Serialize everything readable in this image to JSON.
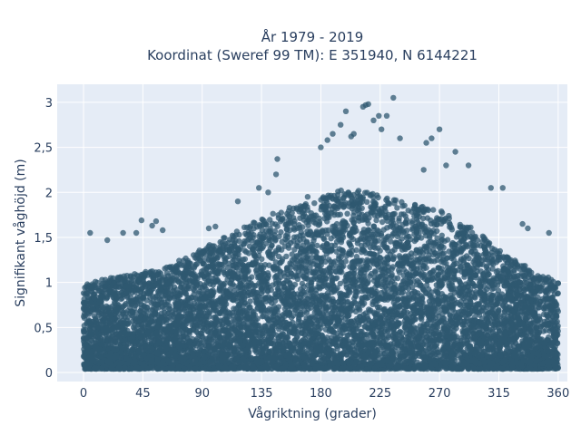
{
  "chart_data": {
    "type": "scatter",
    "title_line1": "År 1979 - 2019",
    "title_line2": "Koordinat (Sweref 99 TM): E 351940, N 6144221",
    "xlabel": "Vågriktning (grader)",
    "ylabel": "Signifikant våghöjd (m)",
    "xlim": [
      -20,
      367
    ],
    "ylim": [
      -0.1,
      3.2
    ],
    "xticks": [
      0,
      45,
      90,
      135,
      180,
      225,
      270,
      315,
      360
    ],
    "xtick_labels": [
      "0",
      "45",
      "90",
      "135",
      "180",
      "225",
      "270",
      "315",
      "360"
    ],
    "yticks": [
      0,
      0.5,
      1,
      1.5,
      2,
      2.5,
      3
    ],
    "ytick_labels": [
      "0",
      "0,5",
      "1",
      "1,5",
      "2",
      "2,5",
      "3"
    ],
    "grid": true,
    "marker_color": "#2f5870",
    "upper_envelope": {
      "x": [
        0,
        20,
        40,
        60,
        80,
        100,
        120,
        140,
        160,
        180,
        200,
        220,
        240,
        260,
        280,
        300,
        320,
        340,
        360
      ],
      "y": [
        1.0,
        1.05,
        1.1,
        1.15,
        1.3,
        1.45,
        1.6,
        1.75,
        1.85,
        1.95,
        2.05,
        2.0,
        1.9,
        1.85,
        1.75,
        1.55,
        1.3,
        1.15,
        1.0
      ]
    },
    "outliers": {
      "x": [
        5,
        18,
        30,
        40,
        44,
        52,
        55,
        60,
        95,
        100,
        117,
        133,
        140,
        146,
        147,
        170,
        180,
        185,
        189,
        195,
        199,
        203,
        205,
        212,
        214,
        216,
        220,
        224,
        226,
        230,
        235,
        240,
        258,
        260,
        264,
        270,
        275,
        282,
        292,
        309,
        318,
        333,
        337,
        353
      ],
      "y": [
        1.55,
        1.47,
        1.55,
        1.55,
        1.69,
        1.63,
        1.68,
        1.58,
        1.6,
        1.62,
        1.9,
        2.05,
        2.0,
        2.2,
        2.37,
        1.95,
        2.5,
        2.58,
        2.65,
        2.75,
        2.9,
        2.62,
        2.65,
        2.95,
        2.97,
        2.98,
        2.8,
        2.85,
        2.7,
        2.85,
        3.05,
        2.6,
        2.25,
        2.55,
        2.6,
        2.7,
        2.3,
        2.45,
        2.3,
        2.05,
        2.05,
        1.65,
        1.6,
        1.55
      ]
    }
  }
}
